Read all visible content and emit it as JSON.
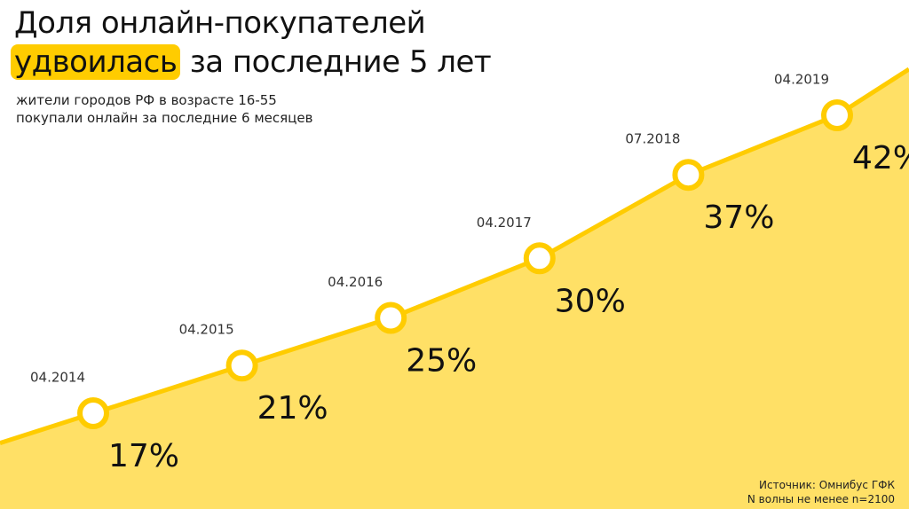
{
  "chart_data": {
    "type": "area",
    "title": "Доля онлайн-покупателей",
    "title_highlight": "удвоилась",
    "title_rest": "за последние 5 лет",
    "subtitle": [
      "жители городов РФ в возрасте 16-55",
      "покупали онлайн за последние 6 месяцев"
    ],
    "source": [
      "Источник: Омнибус ГФК",
      "N волны не менее n=2100"
    ],
    "categories": [
      "04.2014",
      "04.2015",
      "04.2016",
      "04.2017",
      "07.2018",
      "04.2019"
    ],
    "values": [
      17,
      21,
      25,
      30,
      37,
      42
    ],
    "value_labels": [
      "17%",
      "21%",
      "25%",
      "30%",
      "37%",
      "42%"
    ],
    "color": "#ffcc00",
    "area_color": "#ffe066"
  }
}
